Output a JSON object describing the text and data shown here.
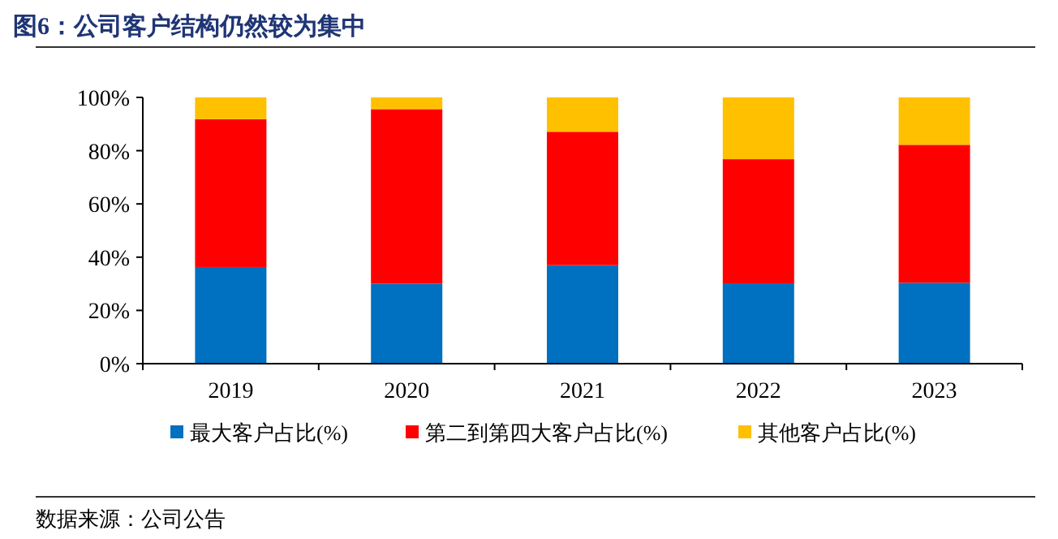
{
  "chart_data": {
    "type": "bar",
    "stacked": true,
    "title": "图6：公司客户结构仍然较为集中",
    "categories": [
      "2019",
      "2020",
      "2021",
      "2022",
      "2023"
    ],
    "series": [
      {
        "name": "最大客户占比(%)",
        "color": "#0070c0",
        "values": [
          36.3,
          30.0,
          37.0,
          30.2,
          30.4
        ]
      },
      {
        "name": "第二到第四大客户占比(%)",
        "color": "#ff0000",
        "values": [
          55.5,
          65.6,
          50.1,
          46.6,
          51.8
        ]
      },
      {
        "name": "其他客户占比(%)",
        "color": "#ffc000",
        "values": [
          8.2,
          4.4,
          12.9,
          23.2,
          17.8
        ]
      }
    ],
    "ylim": [
      0,
      100
    ],
    "yticks": [
      {
        "value": 0,
        "label": "0%"
      },
      {
        "value": 20,
        "label": "20%"
      },
      {
        "value": 40,
        "label": "40%"
      },
      {
        "value": 60,
        "label": "60%"
      },
      {
        "value": 80,
        "label": "80%"
      },
      {
        "value": 100,
        "label": "100%"
      }
    ],
    "legend": "bottom",
    "annotations": [
      "数据来源：公司公告"
    ]
  }
}
